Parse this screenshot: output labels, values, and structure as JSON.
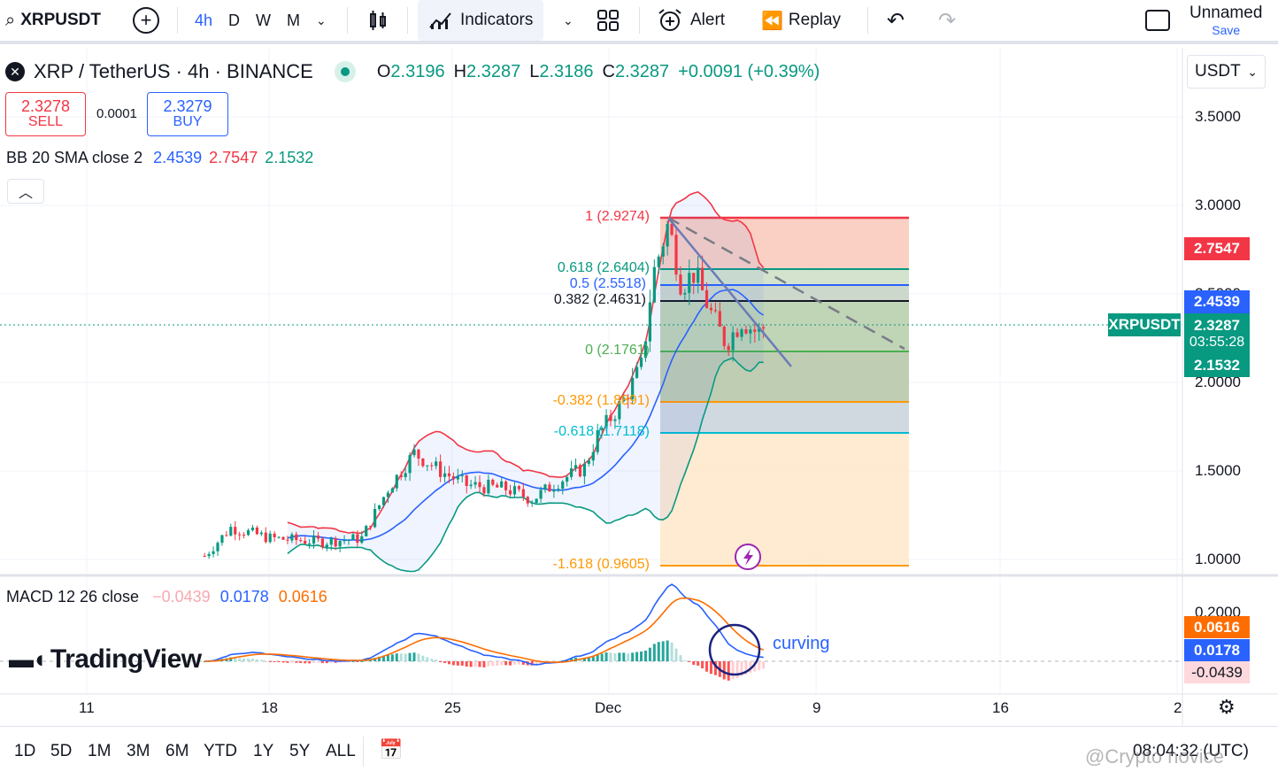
{
  "toolbar": {
    "symbol": "XRPUSDT",
    "intervals": [
      "4h",
      "D",
      "W",
      "M"
    ],
    "active_interval": "4h",
    "indicators_label": "Indicators",
    "alert_label": "Alert",
    "replay_label": "Replay",
    "layout_name": "Unnamed",
    "save_label": "Save"
  },
  "legend": {
    "title": "XRP / TetherUS · 4h · BINANCE",
    "o_label": "O",
    "o": "2.3196",
    "h_label": "H",
    "h": "2.3287",
    "l_label": "L",
    "l": "2.3186",
    "c_label": "C",
    "c": "2.3287",
    "change": "+0.0091 (+0.39%)",
    "sell_price": "2.3278",
    "sell_label": "SELL",
    "spread": "0.0001",
    "buy_price": "2.3279",
    "buy_label": "BUY",
    "bb_name": "BB 20 SMA close 2",
    "bb_basis": "2.4539",
    "bb_upper": "2.7547",
    "bb_lower": "2.1532"
  },
  "price_scale": {
    "currency": "USDT",
    "ticks": [
      "3.5000",
      "3.0000",
      "2.5000",
      "2.0000",
      "1.5000",
      "1.0000"
    ],
    "upper_label": "2.7547",
    "basis_label": "2.4539",
    "last_price": "2.3287",
    "countdown": "03:55:28",
    "lower_label": "2.1532",
    "symbol_tag": "XRPUSDT"
  },
  "fib_levels": [
    {
      "text": "1 (2.9274)",
      "color": "#f23645"
    },
    {
      "text": "0.618 (2.6404)",
      "color": "#089981"
    },
    {
      "text": "0.5 (2.5518)",
      "color": "#2962ff"
    },
    {
      "text": "0.382 (2.4631)",
      "color": "#131722"
    },
    {
      "text": "0 (2.1761)",
      "color": "#4caf50"
    },
    {
      "text": "-0.382 (1.8891)",
      "color": "#ff9800"
    },
    {
      "text": "-0.618 (1.7118)",
      "color": "#00bcd4"
    },
    {
      "text": "-1.618 (0.9605)",
      "color": "#ff9800"
    }
  ],
  "macd": {
    "name": "MACD 12 26 close",
    "hist": "−0.0439",
    "macd": "0.0178",
    "signal": "0.0616",
    "scale_tick": "0.2000",
    "signal_label": "0.0616",
    "macd_label": "0.0178",
    "hist_label": "-0.0439",
    "annotation": "curving"
  },
  "brand": "TradingView",
  "time_axis": [
    "11",
    "18",
    "25",
    "Dec",
    "9",
    "16",
    "2"
  ],
  "ranges": [
    "1D",
    "5D",
    "1M",
    "3M",
    "6M",
    "YTD",
    "1Y",
    "5Y",
    "ALL"
  ],
  "clock": "08:04:32 (UTC)",
  "watermark": "@Crypto novice",
  "colors": {
    "up": "#089981",
    "down": "#f23645",
    "accent": "#2962ff",
    "bb_upper": "#f23645",
    "bb_basis": "#2962ff",
    "bb_lower": "#089981"
  },
  "chart_data": {
    "type": "candlestick",
    "symbol": "XRPUSDT",
    "timeframe": "4h",
    "ylim": [
      0.95,
      3.6
    ],
    "approx_close_path": [
      {
        "x": "Nov 15",
        "y": 1.02
      },
      {
        "x": "Nov 16",
        "y": 1.18
      },
      {
        "x": "Nov 18",
        "y": 1.1
      },
      {
        "x": "Nov 20",
        "y": 1.1
      },
      {
        "x": "Nov 22",
        "y": 1.4
      },
      {
        "x": "Nov 23",
        "y": 1.58
      },
      {
        "x": "Nov 25",
        "y": 1.45
      },
      {
        "x": "Nov 27",
        "y": 1.4
      },
      {
        "x": "Nov 29",
        "y": 1.48
      },
      {
        "x": "Nov 30",
        "y": 1.75
      },
      {
        "x": "Dec 1",
        "y": 1.95
      },
      {
        "x": "Dec 2",
        "y": 2.4
      },
      {
        "x": "Dec 3",
        "y": 2.7
      },
      {
        "x": "Dec 4",
        "y": 2.45
      },
      {
        "x": "Dec 5",
        "y": 2.25
      },
      {
        "x": "Dec 6",
        "y": 2.33
      }
    ]
  }
}
